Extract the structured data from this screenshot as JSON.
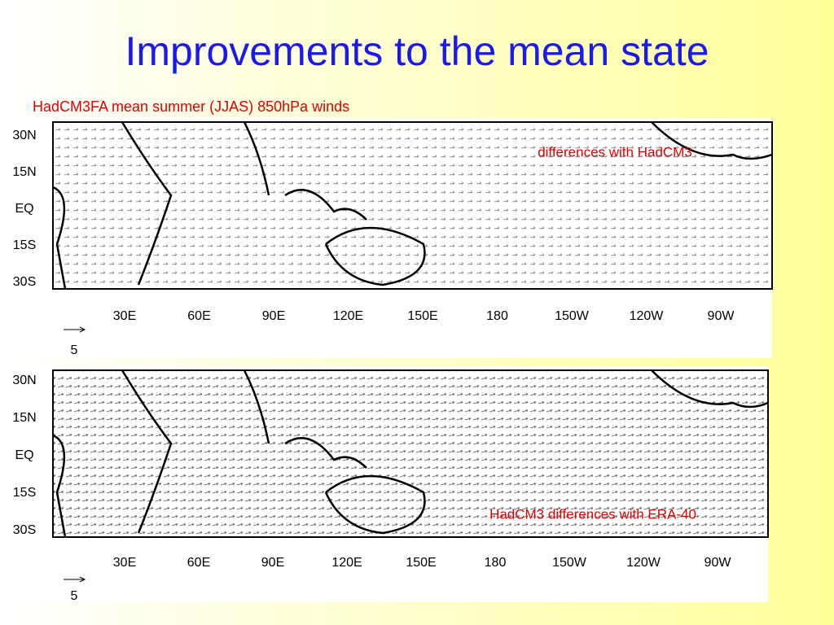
{
  "title": "Improvements to the mean state",
  "subtitle": "HadCM3FA mean summer (JJAS) 850hPa winds",
  "panels": [
    {
      "label": "differences with HadCM3",
      "lat_labels": [
        "30N",
        "15N",
        "EQ",
        "15S",
        "30S"
      ],
      "lon_labels": [
        "30E",
        "60E",
        "90E",
        "120E",
        "150E",
        "180",
        "150W",
        "120W",
        "90W"
      ],
      "scale_label": "5"
    },
    {
      "label": "HadCM3 differences with ERA-40",
      "lat_labels": [
        "30N",
        "15N",
        "EQ",
        "15S",
        "30S"
      ],
      "lon_labels": [
        "30E",
        "60E",
        "90E",
        "120E",
        "150E",
        "180",
        "150W",
        "120W",
        "90W"
      ],
      "scale_label": "5"
    }
  ]
}
